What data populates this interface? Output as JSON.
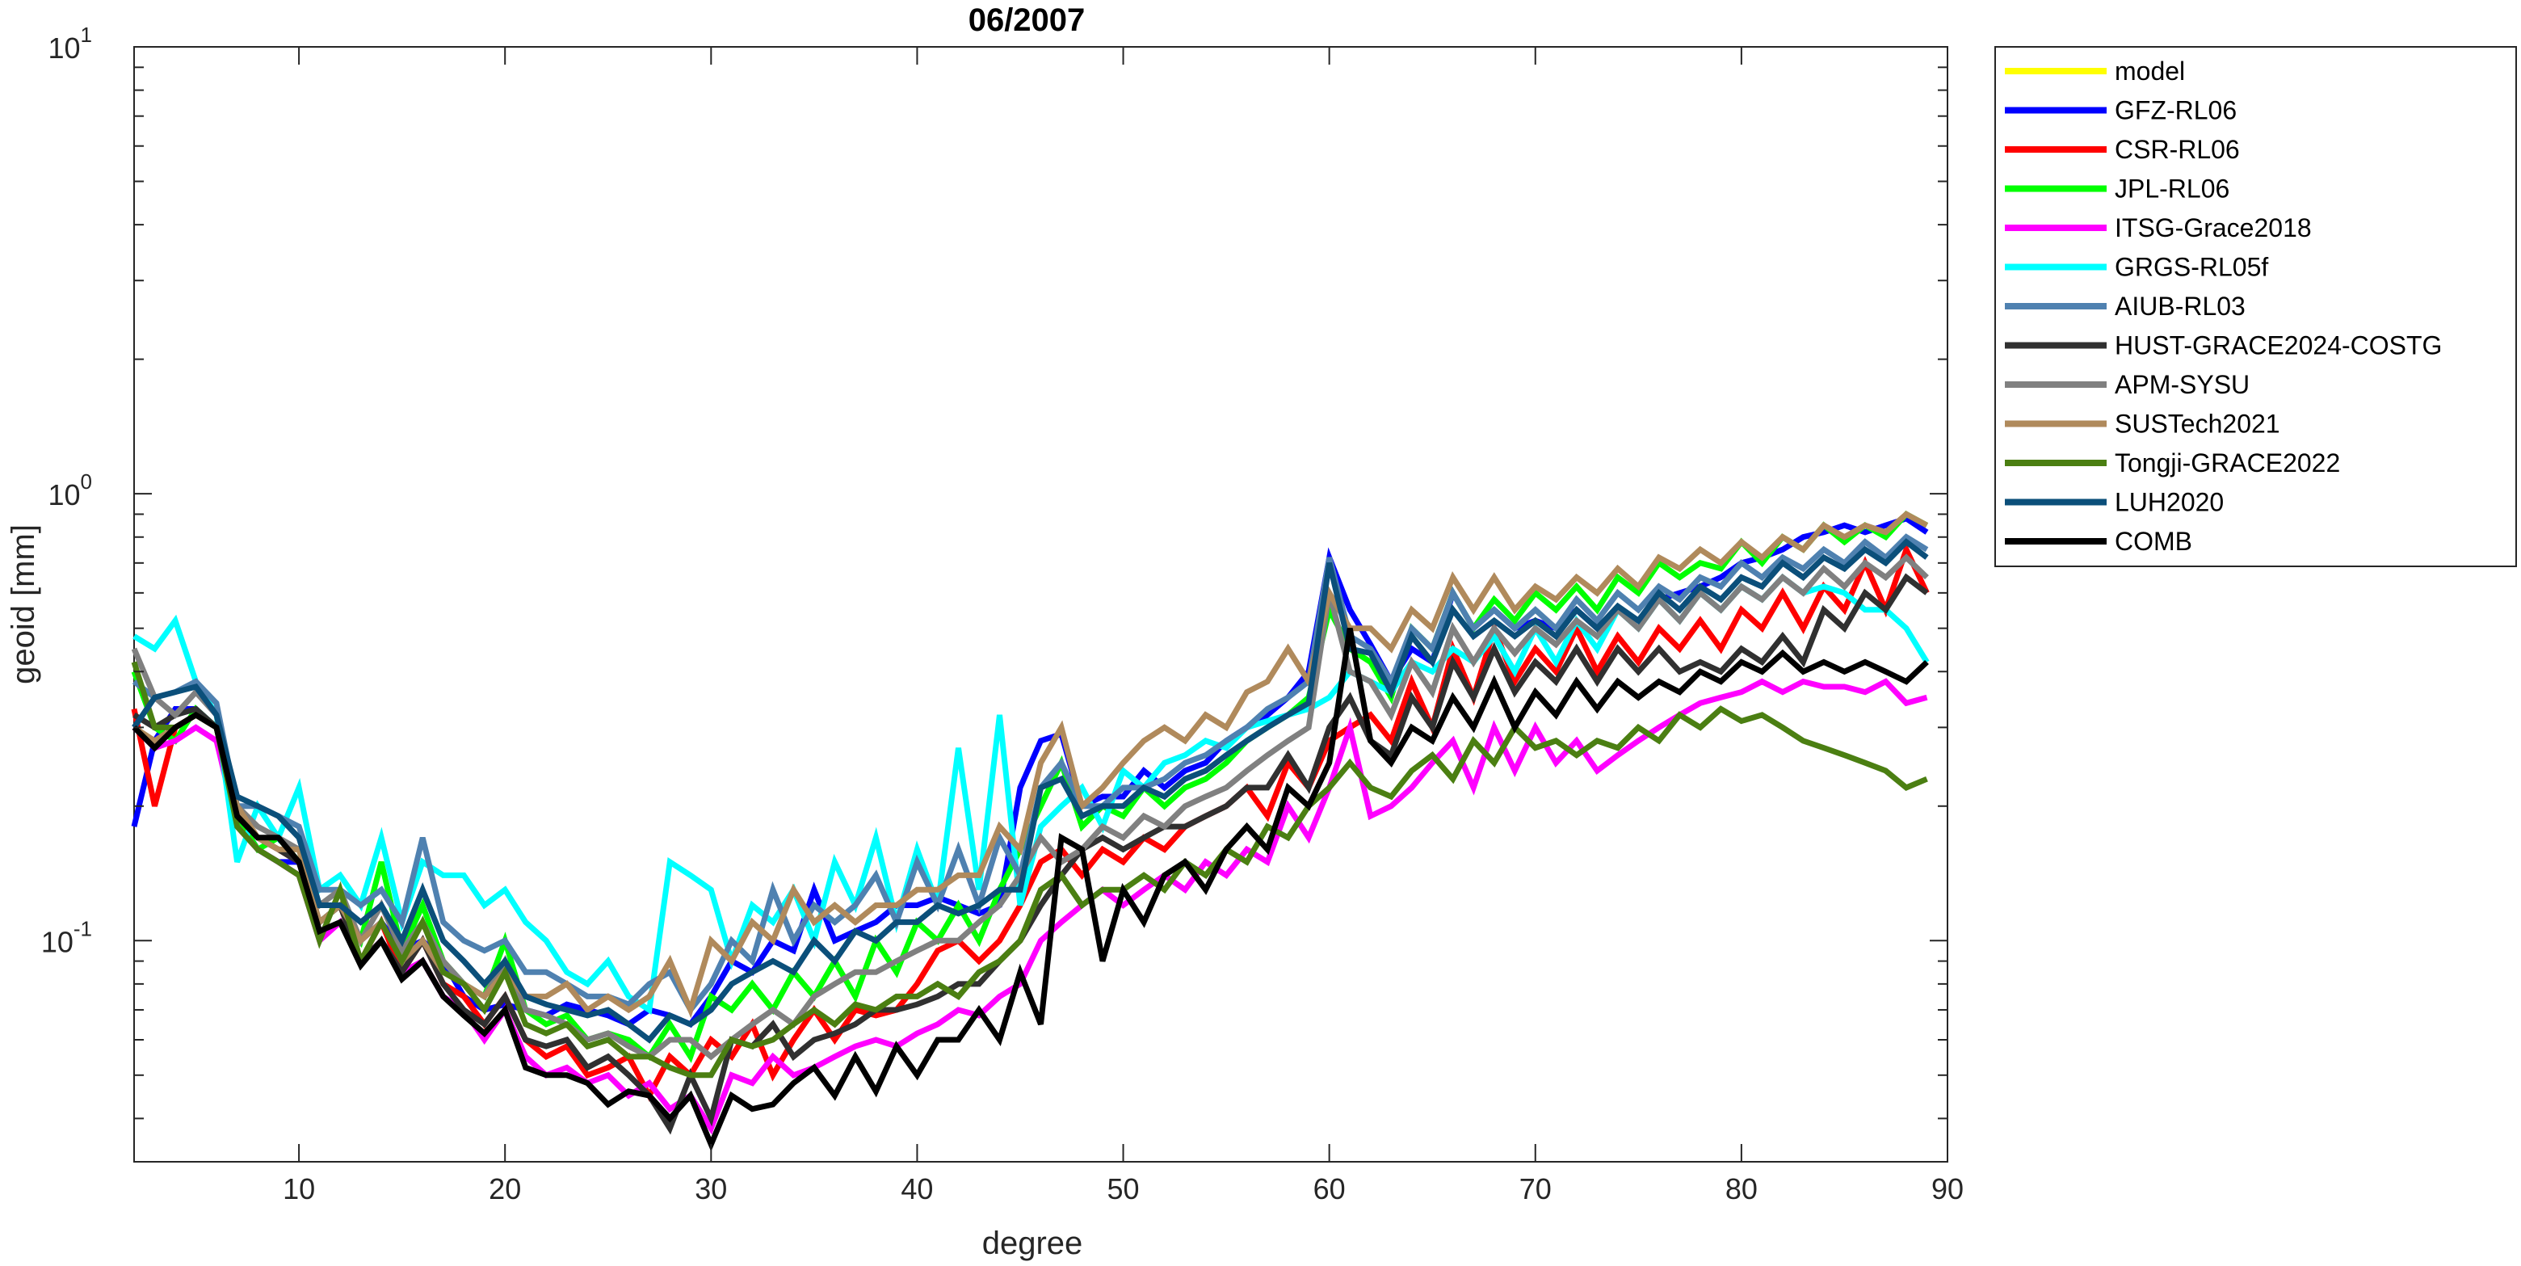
{
  "chart_data": {
    "type": "line",
    "title": "06/2007",
    "xlabel": "degree",
    "ylabel": "geoid [mm]",
    "xlim": [
      2,
      90
    ],
    "ylim": [
      0.032,
      10
    ],
    "yscale": "log",
    "grid": false,
    "legend_position": "outside-top-right",
    "x_ticks": [
      10,
      20,
      30,
      40,
      50,
      60,
      70,
      80,
      90
    ],
    "y_ticks": [
      {
        "value": 0.1,
        "base": "10",
        "exp": "-1"
      },
      {
        "value": 1,
        "base": "10",
        "exp": "0"
      },
      {
        "value": 10,
        "base": "10",
        "exp": "1"
      }
    ],
    "x_start": 2,
    "series": [
      {
        "name": "model",
        "color": "#FFFF00",
        "values": []
      },
      {
        "name": "GFZ-RL06",
        "color": "#0000FF",
        "values": [
          0.18,
          0.28,
          0.33,
          0.33,
          0.3,
          0.19,
          0.16,
          0.15,
          0.15,
          0.11,
          0.12,
          0.1,
          0.11,
          0.095,
          0.1,
          0.09,
          0.075,
          0.07,
          0.072,
          0.07,
          0.068,
          0.072,
          0.07,
          0.068,
          0.065,
          0.07,
          0.068,
          0.065,
          0.075,
          0.09,
          0.085,
          0.1,
          0.095,
          0.13,
          0.1,
          0.105,
          0.11,
          0.12,
          0.12,
          0.125,
          0.12,
          0.115,
          0.12,
          0.22,
          0.28,
          0.29,
          0.2,
          0.21,
          0.21,
          0.24,
          0.22,
          0.24,
          0.25,
          0.28,
          0.3,
          0.32,
          0.35,
          0.4,
          0.72,
          0.55,
          0.46,
          0.38,
          0.45,
          0.42,
          0.6,
          0.5,
          0.55,
          0.5,
          0.52,
          0.5,
          0.55,
          0.5,
          0.55,
          0.52,
          0.58,
          0.6,
          0.62,
          0.65,
          0.7,
          0.72,
          0.75,
          0.8,
          0.82,
          0.85,
          0.82,
          0.85,
          0.88,
          0.82
        ]
      },
      {
        "name": "CSR-RL06",
        "color": "#FF0000",
        "values": [
          0.33,
          0.2,
          0.3,
          0.32,
          0.3,
          0.19,
          0.17,
          0.16,
          0.15,
          0.11,
          0.12,
          0.09,
          0.11,
          0.085,
          0.1,
          0.08,
          0.075,
          0.065,
          0.075,
          0.06,
          0.055,
          0.058,
          0.05,
          0.052,
          0.055,
          0.045,
          0.055,
          0.05,
          0.06,
          0.055,
          0.065,
          0.05,
          0.06,
          0.07,
          0.06,
          0.07,
          0.068,
          0.07,
          0.08,
          0.095,
          0.1,
          0.09,
          0.1,
          0.12,
          0.15,
          0.16,
          0.14,
          0.16,
          0.15,
          0.17,
          0.16,
          0.18,
          0.19,
          0.2,
          0.22,
          0.19,
          0.25,
          0.22,
          0.28,
          0.3,
          0.32,
          0.28,
          0.38,
          0.3,
          0.45,
          0.35,
          0.5,
          0.38,
          0.45,
          0.4,
          0.5,
          0.4,
          0.48,
          0.42,
          0.5,
          0.45,
          0.52,
          0.45,
          0.55,
          0.5,
          0.6,
          0.5,
          0.62,
          0.55,
          0.7,
          0.55,
          0.75,
          0.6
        ]
      },
      {
        "name": "JPL-RL06",
        "color": "#00FF00",
        "values": [
          0.4,
          0.3,
          0.28,
          0.33,
          0.3,
          0.19,
          0.16,
          0.17,
          0.15,
          0.11,
          0.12,
          0.1,
          0.15,
          0.095,
          0.12,
          0.09,
          0.08,
          0.075,
          0.1,
          0.07,
          0.065,
          0.068,
          0.06,
          0.062,
          0.06,
          0.055,
          0.065,
          0.055,
          0.075,
          0.07,
          0.08,
          0.07,
          0.085,
          0.075,
          0.09,
          0.075,
          0.1,
          0.085,
          0.11,
          0.1,
          0.12,
          0.1,
          0.13,
          0.16,
          0.2,
          0.25,
          0.18,
          0.2,
          0.19,
          0.22,
          0.2,
          0.22,
          0.23,
          0.25,
          0.28,
          0.3,
          0.32,
          0.35,
          0.55,
          0.45,
          0.42,
          0.35,
          0.5,
          0.45,
          0.6,
          0.5,
          0.58,
          0.52,
          0.6,
          0.55,
          0.62,
          0.55,
          0.65,
          0.6,
          0.7,
          0.65,
          0.7,
          0.68,
          0.78,
          0.7,
          0.8,
          0.75,
          0.85,
          0.78,
          0.85,
          0.8,
          0.9,
          0.85
        ]
      },
      {
        "name": "ITSG-Grace2018",
        "color": "#FF00FF",
        "values": [
          0.3,
          0.27,
          0.28,
          0.3,
          0.28,
          0.18,
          0.16,
          0.15,
          0.14,
          0.1,
          0.11,
          0.09,
          0.1,
          0.085,
          0.09,
          0.075,
          0.07,
          0.06,
          0.07,
          0.055,
          0.05,
          0.052,
          0.048,
          0.05,
          0.045,
          0.048,
          0.042,
          0.045,
          0.038,
          0.05,
          0.048,
          0.055,
          0.05,
          0.052,
          0.055,
          0.058,
          0.06,
          0.058,
          0.062,
          0.065,
          0.07,
          0.068,
          0.075,
          0.08,
          0.1,
          0.11,
          0.12,
          0.13,
          0.12,
          0.13,
          0.14,
          0.13,
          0.15,
          0.14,
          0.16,
          0.15,
          0.2,
          0.17,
          0.22,
          0.3,
          0.19,
          0.2,
          0.22,
          0.25,
          0.28,
          0.22,
          0.3,
          0.24,
          0.3,
          0.25,
          0.28,
          0.24,
          0.26,
          0.28,
          0.3,
          0.32,
          0.34,
          0.35,
          0.36,
          0.38,
          0.36,
          0.38,
          0.37,
          0.37,
          0.36,
          0.38,
          0.34,
          0.35
        ]
      },
      {
        "name": "GRGS-RL05f",
        "color": "#00FFFF",
        "values": [
          0.48,
          0.45,
          0.52,
          0.38,
          0.32,
          0.15,
          0.2,
          0.17,
          0.22,
          0.13,
          0.14,
          0.12,
          0.17,
          0.11,
          0.15,
          0.14,
          0.14,
          0.12,
          0.13,
          0.11,
          0.1,
          0.085,
          0.08,
          0.09,
          0.075,
          0.07,
          0.15,
          0.14,
          0.13,
          0.09,
          0.12,
          0.11,
          0.13,
          0.1,
          0.15,
          0.12,
          0.17,
          0.11,
          0.16,
          0.12,
          0.27,
          0.13,
          0.32,
          0.12,
          0.18,
          0.2,
          0.22,
          0.18,
          0.24,
          0.22,
          0.25,
          0.26,
          0.28,
          0.27,
          0.3,
          0.31,
          0.32,
          0.33,
          0.35,
          0.4,
          0.38,
          0.36,
          0.42,
          0.4,
          0.45,
          0.42,
          0.48,
          0.4,
          0.5,
          0.42,
          0.52,
          0.45,
          0.55,
          0.5,
          0.58,
          0.52,
          0.6,
          0.55,
          0.62,
          0.58,
          0.65,
          0.6,
          0.62,
          0.6,
          0.55,
          0.55,
          0.5,
          0.42
        ]
      },
      {
        "name": "AIUB-RL03",
        "color": "#4F81B0",
        "values": [
          0.38,
          0.35,
          0.36,
          0.38,
          0.34,
          0.2,
          0.2,
          0.19,
          0.18,
          0.13,
          0.13,
          0.12,
          0.13,
          0.11,
          0.17,
          0.11,
          0.1,
          0.095,
          0.1,
          0.085,
          0.085,
          0.08,
          0.075,
          0.075,
          0.072,
          0.08,
          0.085,
          0.07,
          0.08,
          0.1,
          0.09,
          0.13,
          0.1,
          0.12,
          0.11,
          0.12,
          0.14,
          0.11,
          0.15,
          0.12,
          0.16,
          0.12,
          0.17,
          0.14,
          0.22,
          0.25,
          0.2,
          0.2,
          0.22,
          0.22,
          0.23,
          0.25,
          0.26,
          0.28,
          0.3,
          0.33,
          0.35,
          0.38,
          0.72,
          0.48,
          0.45,
          0.38,
          0.5,
          0.45,
          0.6,
          0.5,
          0.55,
          0.5,
          0.55,
          0.5,
          0.58,
          0.52,
          0.6,
          0.55,
          0.62,
          0.58,
          0.65,
          0.62,
          0.7,
          0.65,
          0.72,
          0.68,
          0.75,
          0.7,
          0.78,
          0.72,
          0.8,
          0.75
        ]
      },
      {
        "name": "HUST-GRACE2024-COSTG",
        "color": "#303030",
        "values": [
          0.32,
          0.3,
          0.32,
          0.33,
          0.3,
          0.19,
          0.17,
          0.16,
          0.15,
          0.11,
          0.12,
          0.09,
          0.1,
          0.085,
          0.1,
          0.08,
          0.07,
          0.065,
          0.075,
          0.06,
          0.058,
          0.06,
          0.052,
          0.055,
          0.05,
          0.045,
          0.038,
          0.05,
          0.04,
          0.06,
          0.058,
          0.065,
          0.055,
          0.06,
          0.062,
          0.065,
          0.07,
          0.07,
          0.072,
          0.075,
          0.08,
          0.08,
          0.09,
          0.1,
          0.12,
          0.14,
          0.16,
          0.17,
          0.16,
          0.17,
          0.18,
          0.18,
          0.19,
          0.2,
          0.22,
          0.22,
          0.26,
          0.22,
          0.3,
          0.35,
          0.28,
          0.26,
          0.35,
          0.3,
          0.42,
          0.35,
          0.45,
          0.36,
          0.42,
          0.38,
          0.45,
          0.38,
          0.45,
          0.4,
          0.45,
          0.4,
          0.42,
          0.4,
          0.45,
          0.42,
          0.48,
          0.42,
          0.55,
          0.5,
          0.6,
          0.55,
          0.65,
          0.6
        ]
      },
      {
        "name": "APM-SYSU",
        "color": "#808080",
        "values": [
          0.45,
          0.35,
          0.32,
          0.36,
          0.32,
          0.2,
          0.18,
          0.17,
          0.16,
          0.12,
          0.13,
          0.1,
          0.12,
          0.095,
          0.11,
          0.09,
          0.08,
          0.075,
          0.09,
          0.07,
          0.068,
          0.065,
          0.06,
          0.062,
          0.058,
          0.055,
          0.06,
          0.06,
          0.055,
          0.06,
          0.065,
          0.07,
          0.065,
          0.075,
          0.08,
          0.085,
          0.085,
          0.09,
          0.095,
          0.1,
          0.1,
          0.11,
          0.12,
          0.14,
          0.17,
          0.15,
          0.16,
          0.18,
          0.17,
          0.19,
          0.18,
          0.2,
          0.21,
          0.22,
          0.24,
          0.26,
          0.28,
          0.3,
          0.6,
          0.4,
          0.38,
          0.32,
          0.42,
          0.36,
          0.5,
          0.42,
          0.5,
          0.44,
          0.5,
          0.46,
          0.52,
          0.48,
          0.55,
          0.5,
          0.58,
          0.52,
          0.6,
          0.55,
          0.62,
          0.58,
          0.65,
          0.6,
          0.68,
          0.62,
          0.7,
          0.65,
          0.72,
          0.65
        ]
      },
      {
        "name": "SUSTech2021",
        "color": "#B08A5C",
        "values": [
          0.3,
          0.28,
          0.3,
          0.32,
          0.3,
          0.2,
          0.17,
          0.16,
          0.16,
          0.11,
          0.12,
          0.1,
          0.11,
          0.09,
          0.1,
          0.085,
          0.08,
          0.075,
          0.085,
          0.075,
          0.075,
          0.08,
          0.07,
          0.075,
          0.07,
          0.075,
          0.09,
          0.07,
          0.1,
          0.09,
          0.11,
          0.1,
          0.13,
          0.11,
          0.12,
          0.11,
          0.12,
          0.12,
          0.13,
          0.13,
          0.14,
          0.14,
          0.18,
          0.16,
          0.25,
          0.3,
          0.2,
          0.22,
          0.25,
          0.28,
          0.3,
          0.28,
          0.32,
          0.3,
          0.36,
          0.38,
          0.45,
          0.38,
          0.6,
          0.5,
          0.5,
          0.45,
          0.55,
          0.5,
          0.65,
          0.55,
          0.65,
          0.55,
          0.62,
          0.58,
          0.65,
          0.6,
          0.68,
          0.62,
          0.72,
          0.68,
          0.75,
          0.7,
          0.78,
          0.72,
          0.8,
          0.75,
          0.85,
          0.8,
          0.85,
          0.82,
          0.9,
          0.85
        ]
      },
      {
        "name": "Tongji-GRACE2022",
        "color": "#4B7F12",
        "values": [
          0.42,
          0.3,
          0.3,
          0.32,
          0.3,
          0.18,
          0.16,
          0.15,
          0.14,
          0.1,
          0.13,
          0.09,
          0.11,
          0.09,
          0.11,
          0.085,
          0.08,
          0.07,
          0.085,
          0.065,
          0.062,
          0.065,
          0.058,
          0.06,
          0.055,
          0.055,
          0.052,
          0.05,
          0.05,
          0.06,
          0.058,
          0.06,
          0.065,
          0.07,
          0.065,
          0.072,
          0.07,
          0.075,
          0.075,
          0.08,
          0.075,
          0.085,
          0.09,
          0.1,
          0.13,
          0.14,
          0.12,
          0.13,
          0.13,
          0.14,
          0.13,
          0.15,
          0.14,
          0.16,
          0.15,
          0.18,
          0.17,
          0.2,
          0.22,
          0.25,
          0.22,
          0.21,
          0.24,
          0.26,
          0.23,
          0.28,
          0.25,
          0.3,
          0.27,
          0.28,
          0.26,
          0.28,
          0.27,
          0.3,
          0.28,
          0.32,
          0.3,
          0.33,
          0.31,
          0.32,
          0.3,
          0.28,
          0.27,
          0.26,
          0.25,
          0.24,
          0.22,
          0.23
        ]
      },
      {
        "name": "LUH2020",
        "color": "#0B4F7A",
        "values": [
          0.3,
          0.35,
          0.36,
          0.37,
          0.32,
          0.21,
          0.2,
          0.19,
          0.17,
          0.12,
          0.12,
          0.11,
          0.12,
          0.1,
          0.13,
          0.1,
          0.09,
          0.08,
          0.09,
          0.075,
          0.072,
          0.07,
          0.068,
          0.07,
          0.065,
          0.06,
          0.068,
          0.065,
          0.07,
          0.08,
          0.085,
          0.09,
          0.085,
          0.1,
          0.09,
          0.105,
          0.1,
          0.11,
          0.11,
          0.12,
          0.115,
          0.12,
          0.13,
          0.13,
          0.22,
          0.23,
          0.19,
          0.2,
          0.2,
          0.22,
          0.21,
          0.23,
          0.24,
          0.26,
          0.28,
          0.3,
          0.32,
          0.34,
          0.7,
          0.45,
          0.44,
          0.36,
          0.48,
          0.42,
          0.55,
          0.48,
          0.52,
          0.48,
          0.52,
          0.48,
          0.55,
          0.5,
          0.56,
          0.52,
          0.6,
          0.55,
          0.62,
          0.58,
          0.65,
          0.62,
          0.7,
          0.65,
          0.72,
          0.68,
          0.75,
          0.7,
          0.78,
          0.72
        ]
      },
      {
        "name": "COMB",
        "color": "#000000",
        "values": [
          0.3,
          0.27,
          0.3,
          0.32,
          0.3,
          0.19,
          0.17,
          0.17,
          0.15,
          0.105,
          0.11,
          0.088,
          0.1,
          0.082,
          0.09,
          0.075,
          0.068,
          0.062,
          0.07,
          0.052,
          0.05,
          0.05,
          0.048,
          0.043,
          0.046,
          0.045,
          0.04,
          0.045,
          0.035,
          0.045,
          0.042,
          0.043,
          0.048,
          0.052,
          0.045,
          0.055,
          0.046,
          0.058,
          0.05,
          0.06,
          0.06,
          0.07,
          0.06,
          0.085,
          0.065,
          0.17,
          0.16,
          0.09,
          0.13,
          0.11,
          0.14,
          0.15,
          0.13,
          0.16,
          0.18,
          0.16,
          0.22,
          0.2,
          0.25,
          0.5,
          0.28,
          0.25,
          0.3,
          0.28,
          0.35,
          0.3,
          0.38,
          0.3,
          0.36,
          0.32,
          0.38,
          0.33,
          0.38,
          0.35,
          0.38,
          0.36,
          0.4,
          0.38,
          0.42,
          0.4,
          0.44,
          0.4,
          0.42,
          0.4,
          0.42,
          0.4,
          0.38,
          0.42
        ]
      }
    ]
  }
}
